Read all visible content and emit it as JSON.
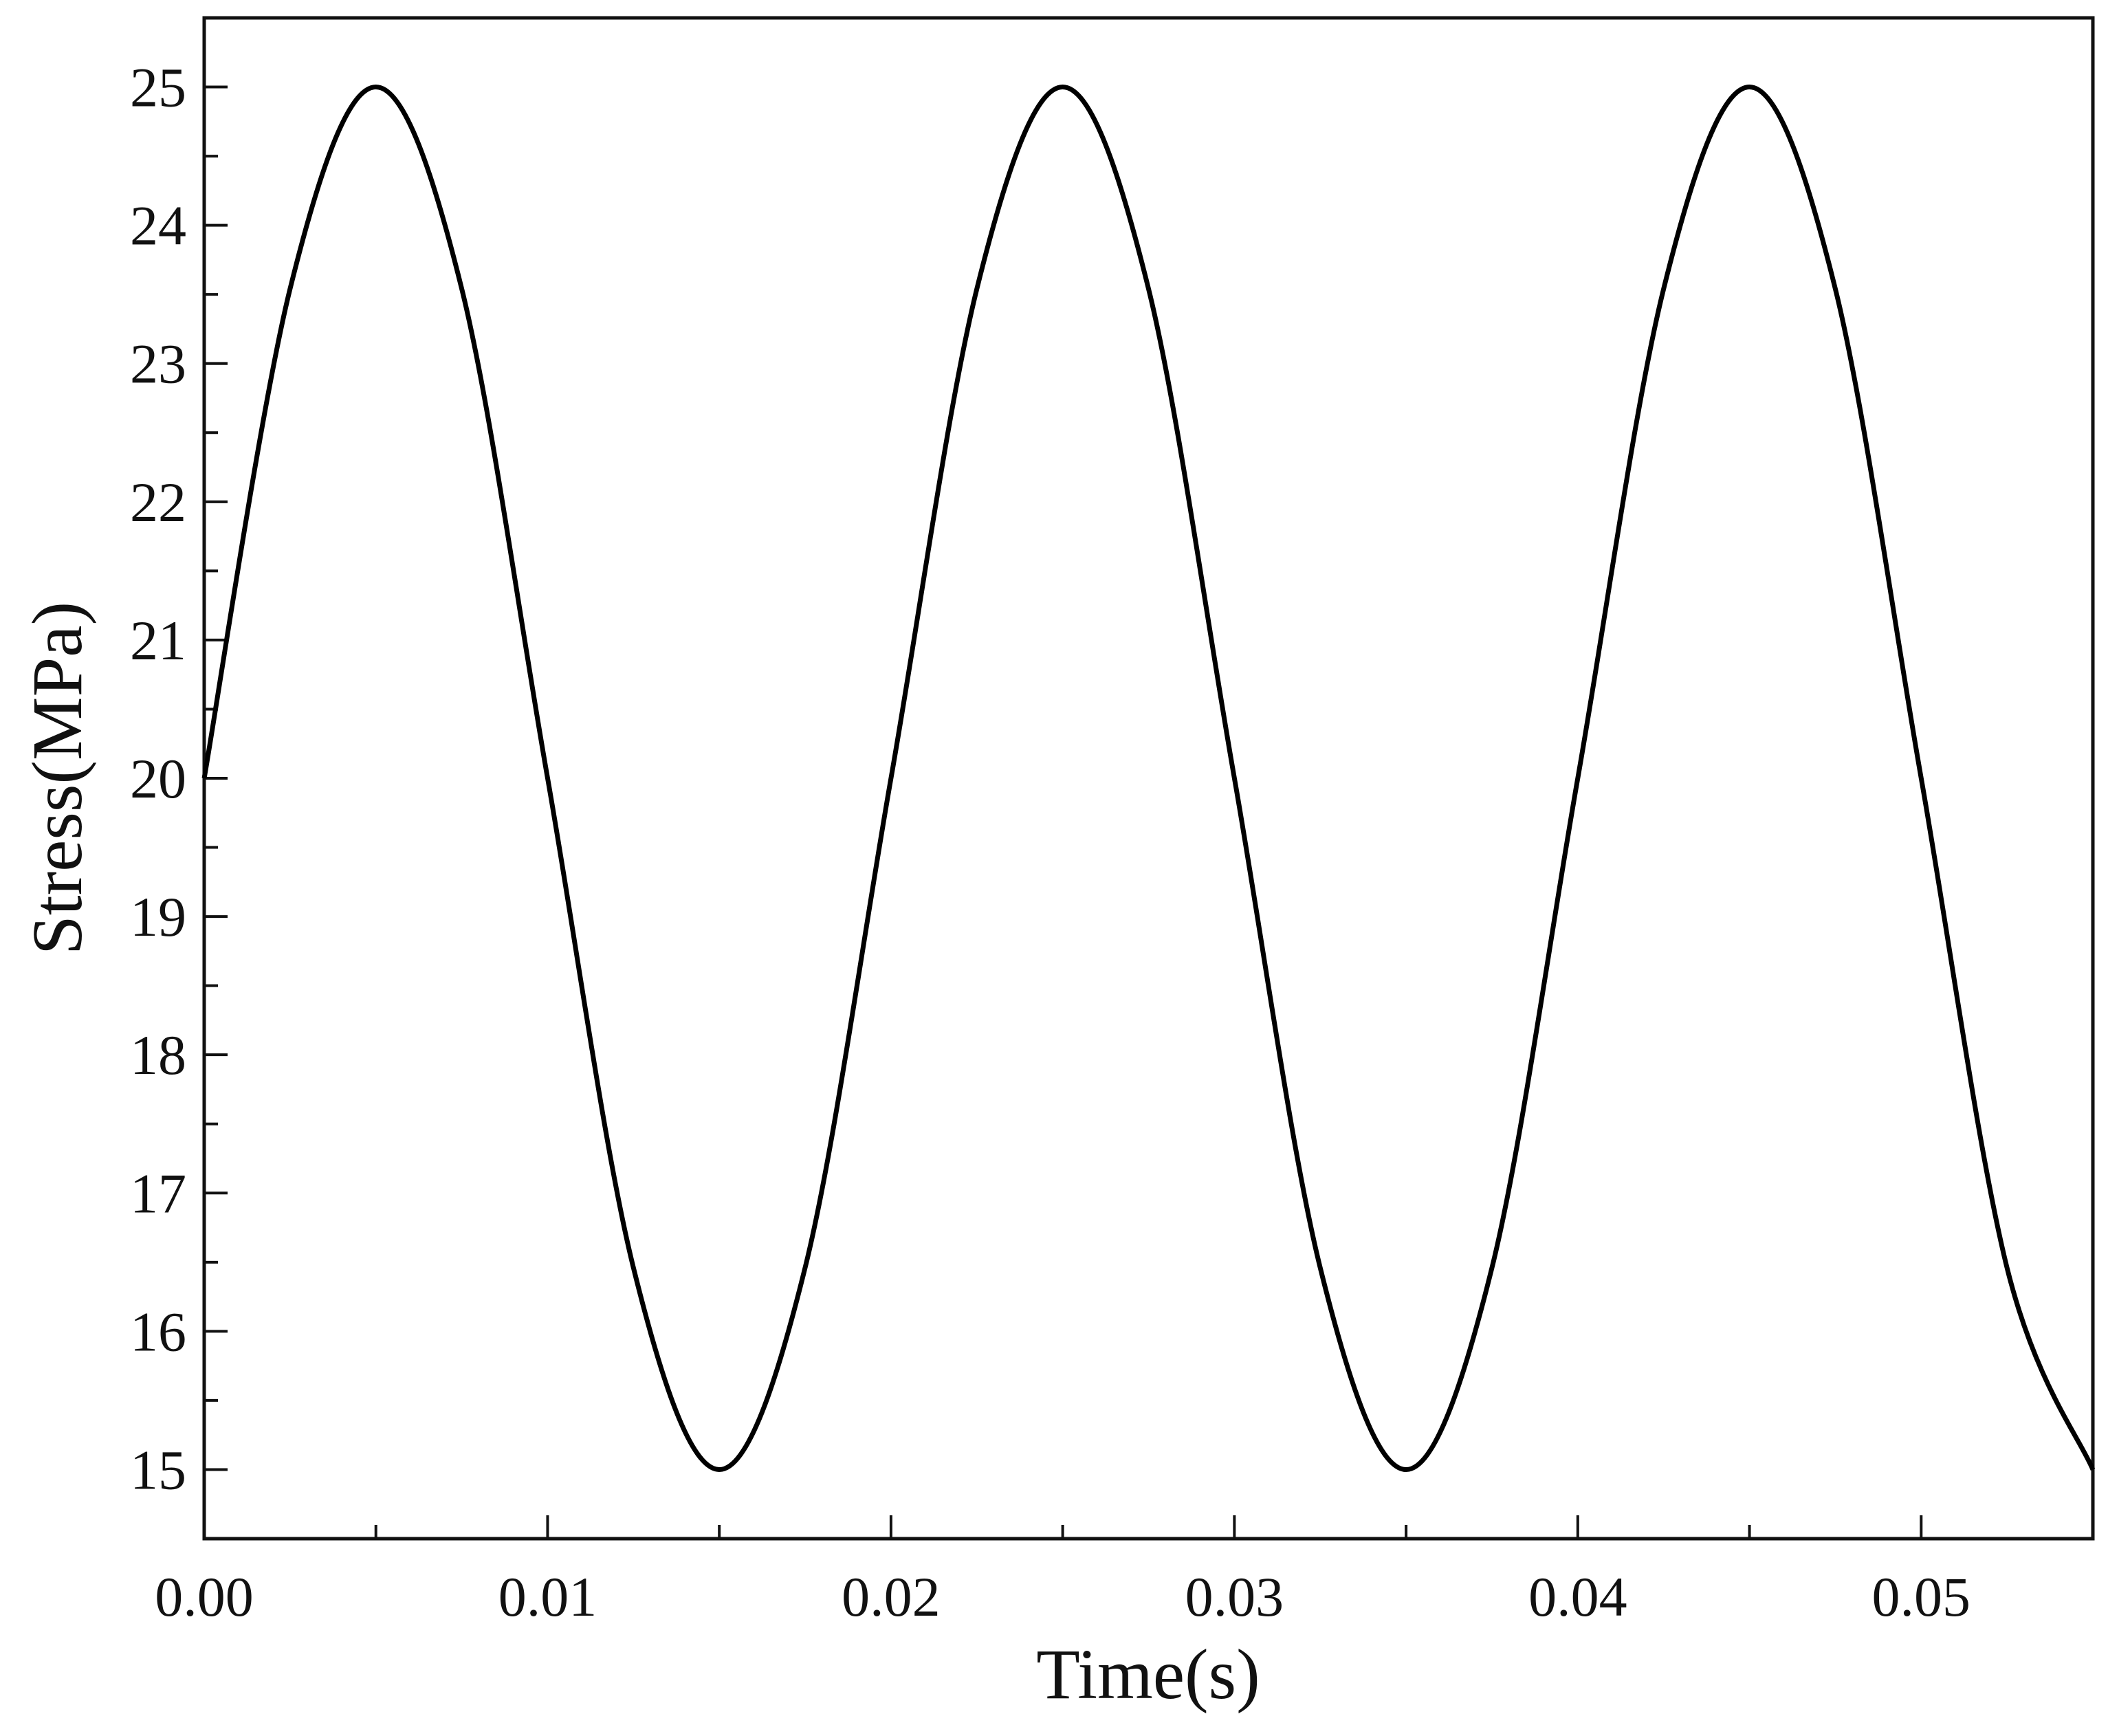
{
  "chart_data": {
    "type": "line",
    "title": "",
    "xlabel": "Time(s)",
    "ylabel": "Stress(MPa)",
    "xlim": [
      0,
      0.055
    ],
    "ylim": [
      14.5,
      25.5
    ],
    "x_ticks": [
      "0.00",
      "0.01",
      "0.02",
      "0.03",
      "0.04",
      "0.05"
    ],
    "y_ticks": [
      "15",
      "16",
      "17",
      "18",
      "19",
      "20",
      "21",
      "22",
      "23",
      "24",
      "25"
    ],
    "grid": false,
    "legend": "none",
    "series": [
      {
        "color": "#000000",
        "x": [
          0,
          0.0025,
          0.005,
          0.0075,
          0.01,
          0.0125,
          0.015,
          0.0175,
          0.02,
          0.0225,
          0.025,
          0.0275,
          0.03,
          0.0325,
          0.035,
          0.0375,
          0.04,
          0.0425,
          0.045,
          0.0475,
          0.05,
          0.0525,
          0.055
        ],
        "y": [
          20,
          23.54,
          25,
          23.54,
          20,
          16.46,
          15,
          16.46,
          20,
          23.54,
          25,
          23.54,
          20,
          16.46,
          15,
          16.46,
          20,
          23.54,
          25,
          23.54,
          20,
          16.46,
          15
        ]
      }
    ]
  }
}
